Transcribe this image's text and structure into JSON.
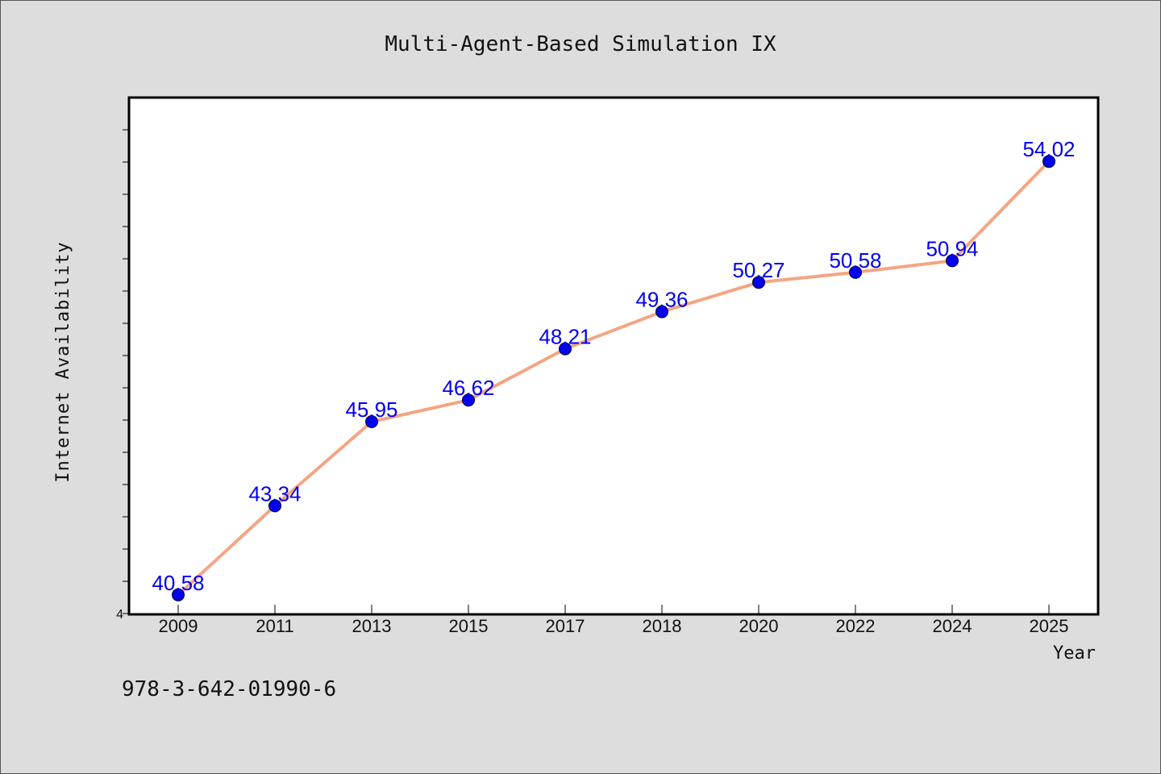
{
  "chart_data": {
    "type": "line",
    "title": "Multi-Agent-Based Simulation IX",
    "xlabel": "Year",
    "ylabel": "Internet Availability",
    "categories": [
      "2009",
      "2011",
      "2013",
      "2015",
      "2017",
      "2018",
      "2020",
      "2022",
      "2024",
      "2025"
    ],
    "series": [
      {
        "values": [
          40.58,
          43.34,
          45.95,
          46.62,
          48.21,
          49.36,
          50.27,
          50.58,
          50.94,
          54.02
        ]
      }
    ],
    "data_labels": [
      "40.58",
      "43.34",
      "45.95",
      "46.62",
      "48.21",
      "49.36",
      "50.27",
      "50.58",
      "50.94",
      "54.02"
    ],
    "ylim": [
      40,
      56
    ],
    "y_tick_label_visible": "4",
    "grid": false,
    "legend": "none",
    "colors": {
      "line": "#f4a582",
      "marker": "#0000ee",
      "data_label": "#0000ee",
      "plot_background": "#ffffff",
      "page_background": "#dddddd"
    }
  },
  "footer": {
    "isbn": "978-3-642-01990-6"
  }
}
